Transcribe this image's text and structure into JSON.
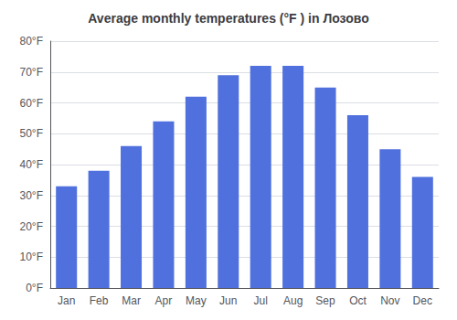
{
  "chart_data": {
    "type": "bar",
    "title": "Average monthly temperatures (°F ) in Лозово",
    "categories": [
      "Jan",
      "Feb",
      "Mar",
      "Apr",
      "May",
      "Jun",
      "Jul",
      "Aug",
      "Sep",
      "Oct",
      "Nov",
      "Dec"
    ],
    "values": [
      33,
      38,
      46,
      54,
      62,
      69,
      72,
      72,
      65,
      56,
      45,
      36
    ],
    "ylim": [
      0,
      80
    ],
    "yticks": [
      {
        "value": 0,
        "label": "0°F"
      },
      {
        "value": 10,
        "label": "10°F"
      },
      {
        "value": 20,
        "label": "20°F"
      },
      {
        "value": 30,
        "label": "30°F"
      },
      {
        "value": 40,
        "label": "40°F"
      },
      {
        "value": 50,
        "label": "50°F"
      },
      {
        "value": 60,
        "label": "60°F"
      },
      {
        "value": 70,
        "label": "70°F"
      },
      {
        "value": 80,
        "label": "80°F"
      }
    ],
    "grid": true
  }
}
